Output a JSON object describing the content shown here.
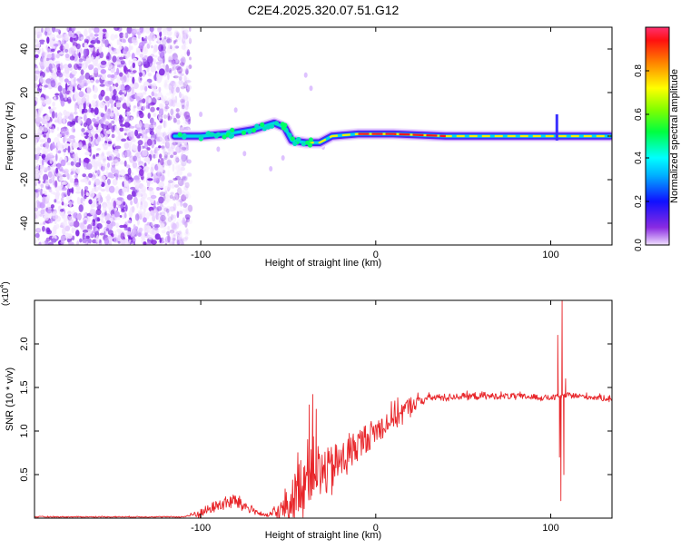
{
  "title": "C2E4.2025.320.07.51.G12",
  "colors": {
    "signal": "#e8262a",
    "spectrum_low": "#8a2be2",
    "spectrum_high": "#ff1a1a",
    "axis": "#000000"
  },
  "chart_data": [
    {
      "id": "spectrogram",
      "type": "heatmap",
      "xlabel": "Height of straight line (km)",
      "ylabel": "Frequency (Hz)",
      "xlim": [
        -195,
        135
      ],
      "ylim": [
        -50,
        50
      ],
      "x_ticks": [
        -100,
        0,
        100
      ],
      "x_tick_labels": [
        "-100",
        "0",
        "100"
      ],
      "y_ticks": [
        40,
        20,
        0,
        -20,
        -40
      ],
      "y_tick_labels": [
        "40",
        "20",
        "0",
        "-20",
        "-40"
      ],
      "noise_region_x": [
        -195,
        -112
      ],
      "signal_path": [
        {
          "x": -115,
          "y": 0
        },
        {
          "x": -100,
          "y": 0
        },
        {
          "x": -85,
          "y": 1
        },
        {
          "x": -70,
          "y": 3
        },
        {
          "x": -58,
          "y": 6
        },
        {
          "x": -52,
          "y": 4
        },
        {
          "x": -48,
          "y": -2
        },
        {
          "x": -40,
          "y": -3
        },
        {
          "x": -32,
          "y": -3
        },
        {
          "x": -25,
          "y": 0
        },
        {
          "x": -10,
          "y": 1
        },
        {
          "x": 10,
          "y": 1
        },
        {
          "x": 40,
          "y": 0
        },
        {
          "x": 80,
          "y": 0
        },
        {
          "x": 105,
          "y": 0
        },
        {
          "x": 134,
          "y": 0
        }
      ],
      "colorbar": {
        "label": "Normalized spectral amplitude",
        "range": [
          0,
          1
        ],
        "ticks": [
          0.0,
          0.2,
          0.4,
          0.6,
          0.8
        ],
        "tick_labels": [
          "0.0",
          "0.2",
          "0.4",
          "0.6",
          "0.8"
        ]
      }
    },
    {
      "id": "snr",
      "type": "line",
      "xlabel": "Height of straight line (km)",
      "ylabel": "SNR (10 * v/v)",
      "y_scale_label": "(x10",
      "y_scale_exp": "4",
      "xlim": [
        -195,
        135
      ],
      "ylim": [
        0,
        25000
      ],
      "x_ticks": [
        -100,
        0,
        100
      ],
      "x_tick_labels": [
        "-100",
        "0",
        "100"
      ],
      "y_ticks": [
        5000,
        10000,
        15000,
        20000
      ],
      "y_tick_labels": [
        "0.5",
        "1.0",
        "1.5",
        "2.0"
      ],
      "envelope": [
        {
          "x": -195,
          "y": 150
        },
        {
          "x": -110,
          "y": 150
        },
        {
          "x": -100,
          "y": 600
        },
        {
          "x": -90,
          "y": 1500
        },
        {
          "x": -80,
          "y": 2000
        },
        {
          "x": -75,
          "y": 1400
        },
        {
          "x": -70,
          "y": 900
        },
        {
          "x": -63,
          "y": 250
        },
        {
          "x": -55,
          "y": 700
        },
        {
          "x": -48,
          "y": 2000
        },
        {
          "x": -42,
          "y": 4500
        },
        {
          "x": -36,
          "y": 6000
        },
        {
          "x": -30,
          "y": 5000
        },
        {
          "x": -20,
          "y": 6500
        },
        {
          "x": -10,
          "y": 8500
        },
        {
          "x": 0,
          "y": 10000
        },
        {
          "x": 10,
          "y": 11500
        },
        {
          "x": 20,
          "y": 13000
        },
        {
          "x": 30,
          "y": 13800
        },
        {
          "x": 50,
          "y": 14000
        },
        {
          "x": 80,
          "y": 14000
        },
        {
          "x": 100,
          "y": 13800
        },
        {
          "x": 110,
          "y": 14100
        },
        {
          "x": 135,
          "y": 13700
        }
      ],
      "noise_amp": [
        {
          "x": -195,
          "y": 60
        },
        {
          "x": -110,
          "y": 60
        },
        {
          "x": -100,
          "y": 500
        },
        {
          "x": -80,
          "y": 900
        },
        {
          "x": -63,
          "y": 150
        },
        {
          "x": -50,
          "y": 1800
        },
        {
          "x": -40,
          "y": 4000
        },
        {
          "x": -30,
          "y": 2800
        },
        {
          "x": -10,
          "y": 1800
        },
        {
          "x": 10,
          "y": 1300
        },
        {
          "x": 20,
          "y": 1000
        },
        {
          "x": 30,
          "y": 400
        },
        {
          "x": 135,
          "y": 300
        }
      ],
      "spikes": [
        {
          "x": -38,
          "y": 13000
        },
        {
          "x": -36,
          "y": 14200
        },
        {
          "x": -34,
          "y": 12500
        },
        {
          "x": 104,
          "y": 21000
        },
        {
          "x": 105,
          "y": 7000
        },
        {
          "x": 105.8,
          "y": 2000
        },
        {
          "x": 106.5,
          "y": 25000
        },
        {
          "x": 107.5,
          "y": 5000
        },
        {
          "x": 108.5,
          "y": 16000
        }
      ]
    }
  ]
}
